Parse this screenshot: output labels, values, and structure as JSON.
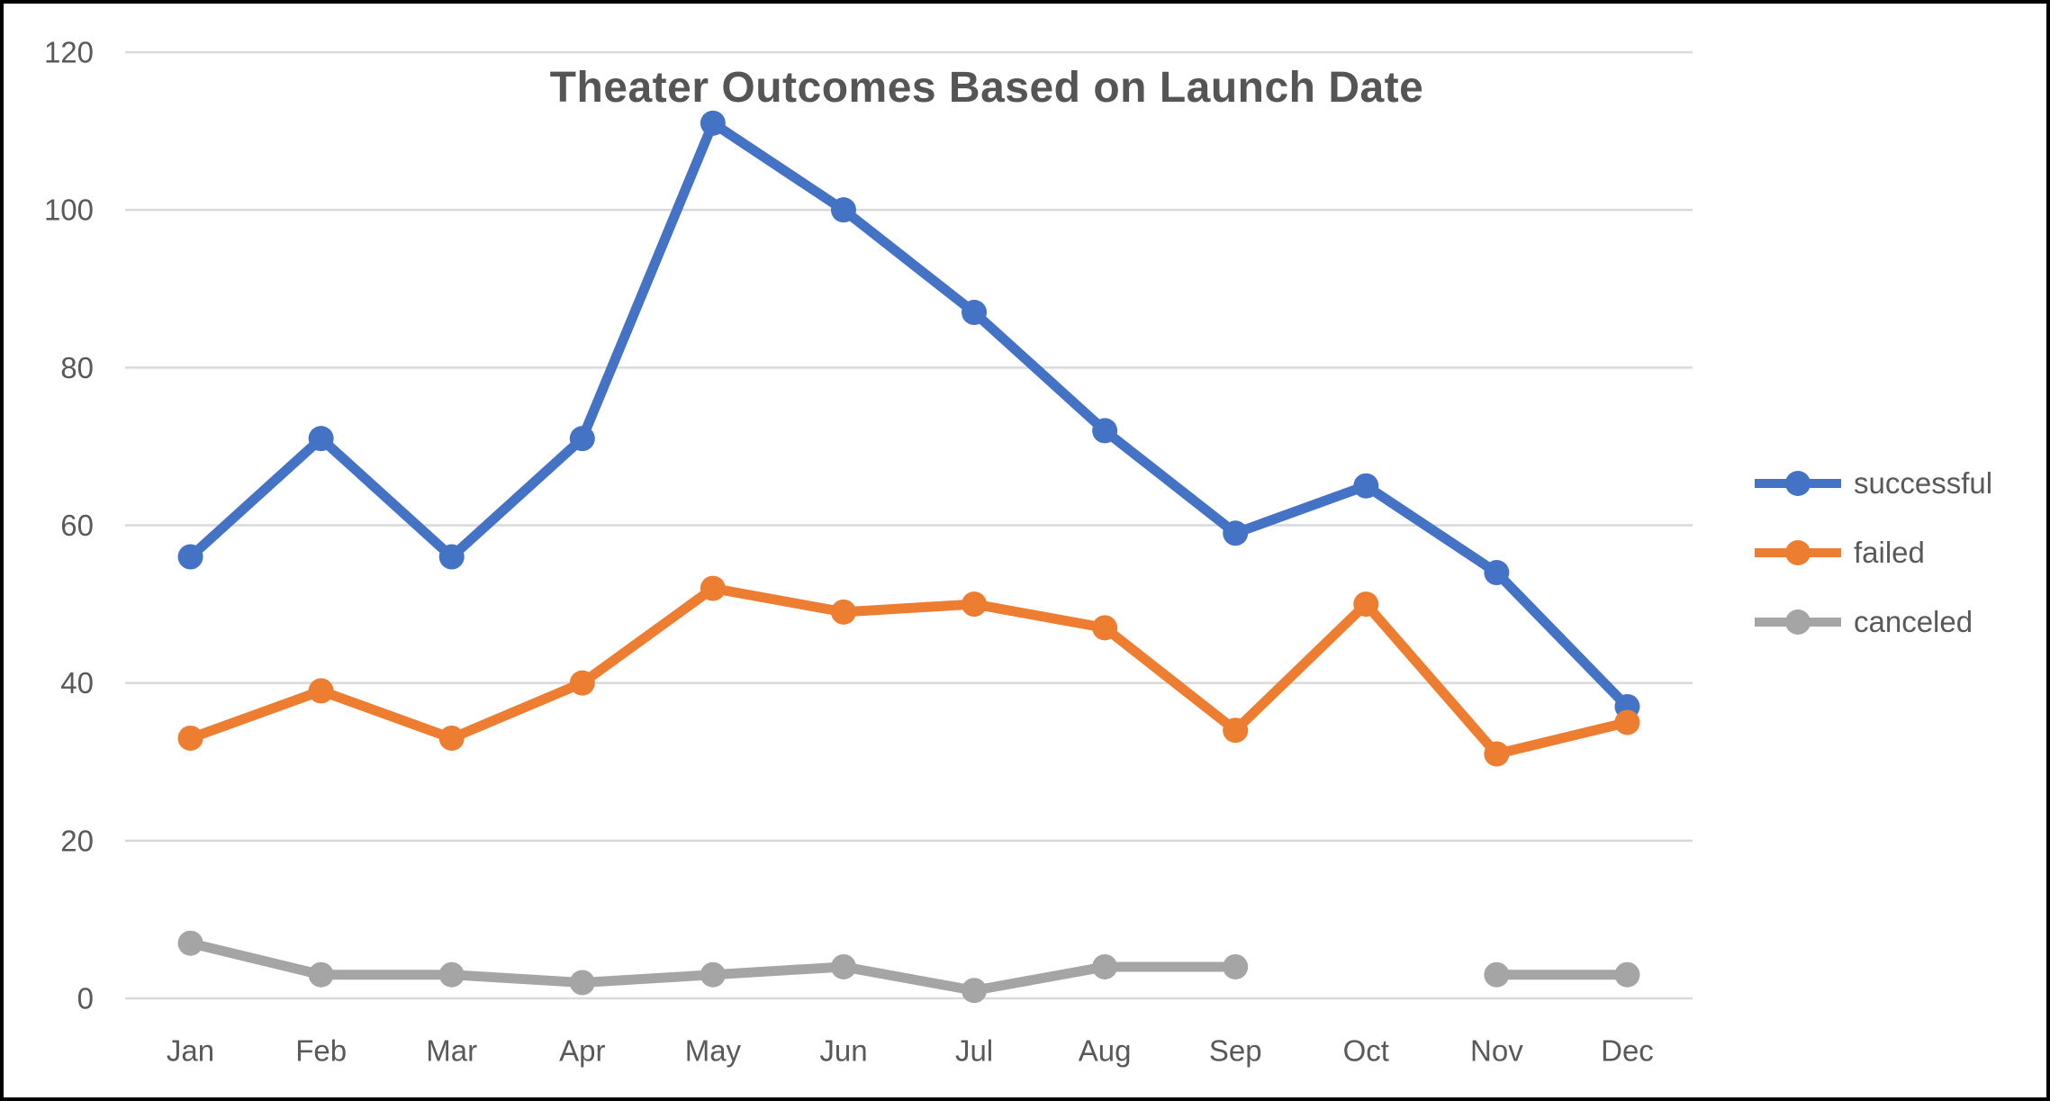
{
  "chart_data": {
    "type": "line",
    "title": "Theater Outcomes Based on Launch Date",
    "categories": [
      "Jan",
      "Feb",
      "Mar",
      "Apr",
      "May",
      "Jun",
      "Jul",
      "Aug",
      "Sep",
      "Oct",
      "Nov",
      "Dec"
    ],
    "series": [
      {
        "name": "successful",
        "color": "#4472C4",
        "values": [
          56,
          71,
          56,
          71,
          111,
          100,
          87,
          72,
          59,
          65,
          54,
          37
        ]
      },
      {
        "name": "failed",
        "color": "#ED7D31",
        "values": [
          33,
          39,
          33,
          40,
          52,
          49,
          50,
          47,
          34,
          50,
          31,
          35
        ]
      },
      {
        "name": "canceled",
        "color": "#A5A5A5",
        "values": [
          7,
          3,
          3,
          2,
          3,
          4,
          1,
          4,
          4,
          null,
          3,
          3
        ]
      }
    ],
    "xlabel": "",
    "ylabel": "",
    "ylim": [
      0,
      120
    ],
    "yticks": [
      0,
      20,
      40,
      60,
      80,
      100,
      120
    ],
    "grid": true,
    "legend_position": "right",
    "style": {
      "gridline_color": "#D9D9D9",
      "axis_text_color": "#595959",
      "title_color": "#555555",
      "frame_border_color": "#000000",
      "background_color": "#FFFFFF"
    }
  }
}
